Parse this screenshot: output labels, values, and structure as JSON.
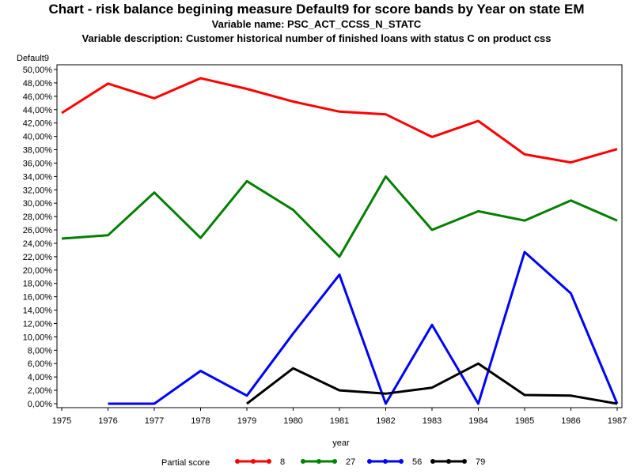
{
  "chart": {
    "title": "Chart - risk balance begining measure Default9 for score bands by Year on state EM",
    "subtitle": "Variable name: PSC_ACT_CCSS_N_STATC",
    "description": "Variable description: Customer historical number of finished loans with status C on product css"
  },
  "chart_data": {
    "type": "line",
    "title": "Chart - risk balance begining measure Default9 for score bands by Year on state EM",
    "xlabel": "year",
    "ylabel": "Default9",
    "x": [
      "1975",
      "1976",
      "1977",
      "1978",
      "1979",
      "1980",
      "1981",
      "1982",
      "1983",
      "1984",
      "1985",
      "1986",
      "1987"
    ],
    "ylim": [
      0,
      50
    ],
    "yticks": [
      "0,00%",
      "2,00%",
      "4,00%",
      "6,00%",
      "8,00%",
      "10,00%",
      "12,00%",
      "14,00%",
      "16,00%",
      "18,00%",
      "20,00%",
      "22,00%",
      "24,00%",
      "26,00%",
      "28,00%",
      "30,00%",
      "32,00%",
      "34,00%",
      "36,00%",
      "38,00%",
      "40,00%",
      "42,00%",
      "44,00%",
      "46,00%",
      "48,00%",
      "50,00%"
    ],
    "legend_title": "Partial score",
    "legend_position": "bottom",
    "grid": false,
    "series": [
      {
        "name": "8",
        "color": "#ff0000",
        "values": [
          43.5,
          47.9,
          45.7,
          48.7,
          47.1,
          45.2,
          43.7,
          43.3,
          39.9,
          42.3,
          37.3,
          36.1,
          38.1
        ]
      },
      {
        "name": "27",
        "color": "#008000",
        "values": [
          24.7,
          25.2,
          31.6,
          24.8,
          33.3,
          29.0,
          22.0,
          34.0,
          26.0,
          28.8,
          27.4,
          30.4,
          27.4
        ]
      },
      {
        "name": "56",
        "color": "#0000ff",
        "values": [
          null,
          0.0,
          0.0,
          4.9,
          1.2,
          10.5,
          19.3,
          0.0,
          11.8,
          0.0,
          22.7,
          16.5,
          0.0
        ]
      },
      {
        "name": "79",
        "color": "#000000",
        "values": [
          null,
          null,
          null,
          null,
          0.0,
          5.3,
          2.0,
          1.5,
          2.4,
          6.0,
          1.3,
          1.2,
          0.0
        ]
      }
    ]
  }
}
